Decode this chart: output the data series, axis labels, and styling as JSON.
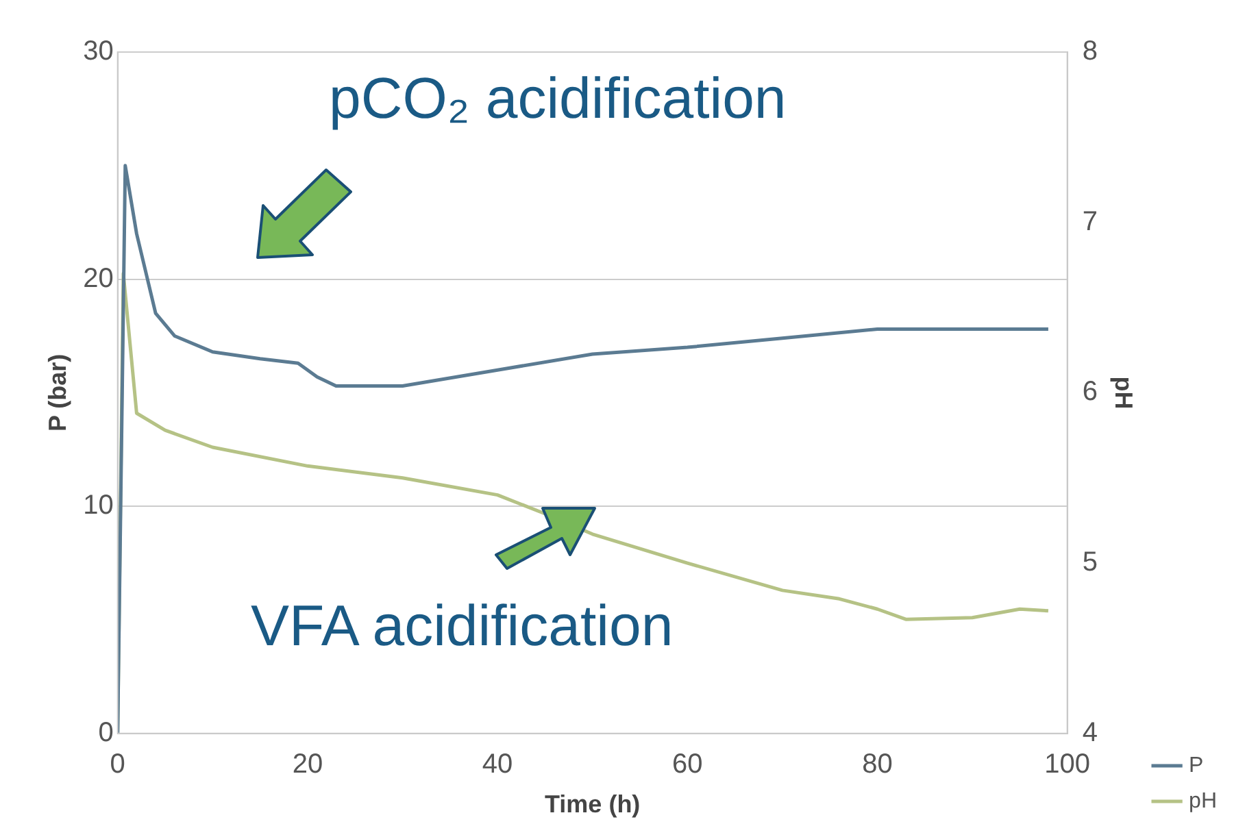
{
  "chart_data": {
    "type": "line",
    "xlabel": "Time (h)",
    "ylabel": "P (bar)",
    "y2label": "pH",
    "xlim": [
      0,
      100
    ],
    "xticks": [
      0,
      20,
      40,
      60,
      80,
      100
    ],
    "ylim": [
      0,
      30
    ],
    "yticks": [
      0,
      10,
      20,
      30
    ],
    "y2lim": [
      4,
      8
    ],
    "y2ticks": [
      4,
      5,
      6,
      7,
      8
    ],
    "grid": "y",
    "legend": "right",
    "marker": "none",
    "line_style": "solid",
    "annotations": [
      "pCO₂ acidification",
      "VFA acidification"
    ],
    "series": [
      {
        "name": "P",
        "color": "#5b7b92",
        "x": [
          0,
          0.8,
          2,
          4,
          6,
          10,
          15,
          19,
          21,
          23,
          30,
          40,
          50,
          60,
          70,
          80,
          90,
          98
        ],
        "values": [
          0,
          25,
          22,
          18.5,
          17.5,
          16.8,
          16.5,
          16.3,
          15.7,
          15.3,
          15.3,
          16,
          16.7,
          17,
          17.4,
          17.8,
          17.8,
          17.8
        ]
      },
      {
        "name": "pH",
        "color": "#b5c285",
        "axis": "y2",
        "x": [
          0,
          0.6,
          2,
          5,
          10,
          20,
          30,
          40,
          45,
          50,
          60,
          70,
          76,
          80,
          83,
          90,
          95,
          98
        ],
        "values": [
          4,
          6.7,
          5.88,
          5.78,
          5.68,
          5.57,
          5.5,
          5.4,
          5.29,
          5.17,
          5,
          4.84,
          4.79,
          4.73,
          4.67,
          4.68,
          4.73,
          4.72
        ]
      }
    ]
  }
}
